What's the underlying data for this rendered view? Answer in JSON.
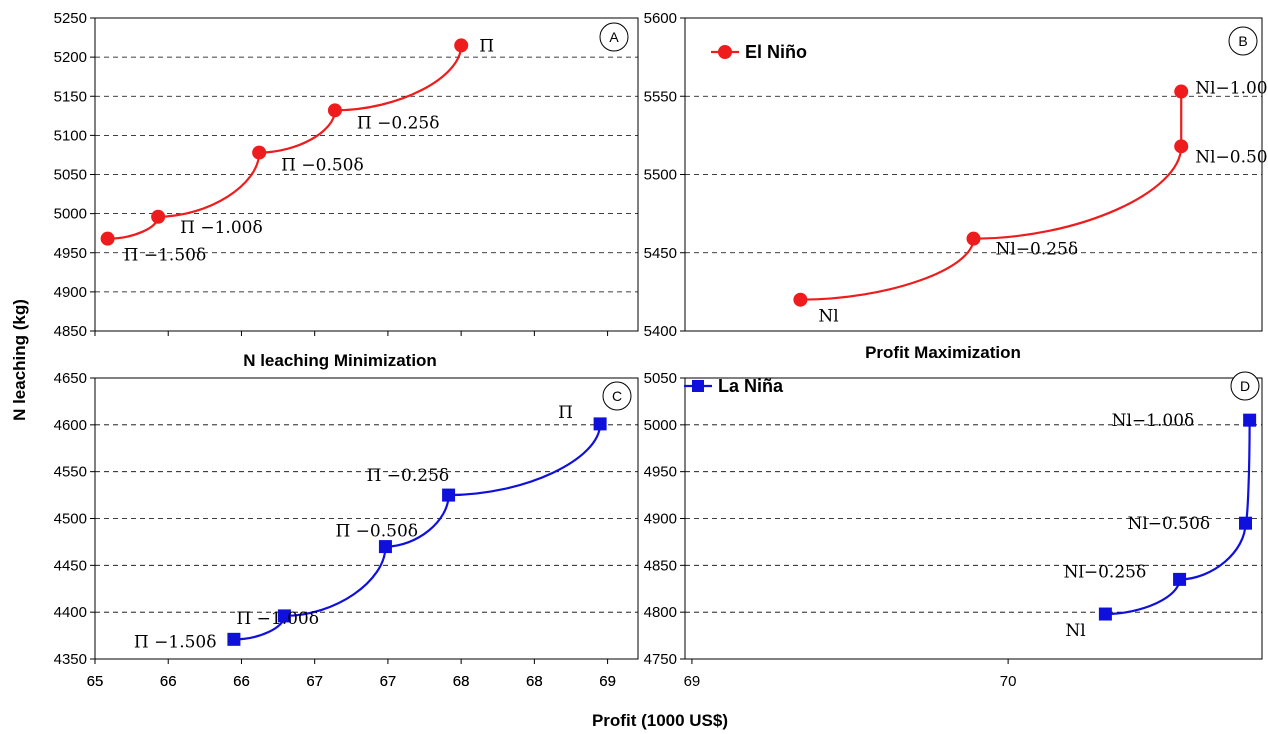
{
  "figure": {
    "y_axis_label": "N leaching (kg)",
    "x_axis_label": "Profit (1000 US$)"
  },
  "chart_data": [
    {
      "panel": "A",
      "type": "line",
      "title": "N leaching Minimization",
      "xlabel": "Profit (1000 US$)",
      "ylabel": "N leaching (kg)",
      "xlim": [
        65,
        69.3
      ],
      "ylim": [
        4850,
        5250
      ],
      "xticks": [
        "65",
        "66",
        "66",
        "67",
        "67",
        "68",
        "68",
        "69"
      ],
      "yticks": [
        4850,
        4900,
        4950,
        5000,
        5050,
        5100,
        5150,
        5200,
        5250
      ],
      "grid": "horizontal dashed",
      "series": [
        {
          "color": "#ee1c1c",
          "marker": "circle",
          "x": [
            65.1,
            65.5,
            66.3,
            66.9,
            67.9
          ],
          "y": [
            4968,
            4996,
            5078,
            5132,
            5215
          ]
        }
      ],
      "annotations": [
        {
          "text": "Π −1.50δ",
          "x": 65.1,
          "y": 4968
        },
        {
          "text": "Π −1.00δ",
          "x": 65.5,
          "y": 4996
        },
        {
          "text": "Π −0.50δ",
          "x": 66.3,
          "y": 5078
        },
        {
          "text": "Π −0.25δ",
          "x": 66.9,
          "y": 5132
        },
        {
          "text": "Π",
          "x": 67.9,
          "y": 5215
        }
      ]
    },
    {
      "panel": "B",
      "type": "line",
      "title": "Profit Maximization",
      "legend": "El Niño",
      "xlabel": "Profit (1000 US$)",
      "ylabel": "N leaching (kg)",
      "ylim": [
        5400,
        5600
      ],
      "yticks": [
        5400,
        5450,
        5500,
        5550,
        5600
      ],
      "grid": "horizontal dashed",
      "series": [
        {
          "name": "El Niño",
          "color": "#ee1c1c",
          "marker": "circle",
          "x": [
            69.05,
            69.2,
            69.38,
            69.38
          ],
          "y": [
            5420,
            5459,
            5518,
            5553
          ]
        }
      ],
      "annotations": [
        {
          "text": "Nl",
          "x": 69.05,
          "y": 5420
        },
        {
          "text": "Nl−0.25δ",
          "x": 69.2,
          "y": 5459
        },
        {
          "text": "Nl−0.50δ",
          "x": 69.38,
          "y": 5518
        },
        {
          "text": "Nl−1.00δ",
          "x": 69.38,
          "y": 5553
        }
      ]
    },
    {
      "panel": "C",
      "type": "line",
      "legend": "",
      "xlabel": "Profit (1000 US$)",
      "ylabel": "N leaching (kg)",
      "xlim": [
        65,
        69.3
      ],
      "ylim": [
        4350,
        4650
      ],
      "xticks": [
        "65",
        "66",
        "66",
        "67",
        "67",
        "68",
        "68",
        "69"
      ],
      "yticks": [
        4350,
        4400,
        4450,
        4500,
        4550,
        4600,
        4650
      ],
      "grid": "horizontal dashed",
      "series": [
        {
          "color": "#1010dd",
          "marker": "square",
          "x": [
            66.1,
            66.5,
            67.3,
            67.8,
            69.0
          ],
          "y": [
            4371,
            4396,
            4470,
            4525,
            4601
          ]
        }
      ],
      "annotations": [
        {
          "text": "Π −1.50δ",
          "x": 66.1,
          "y": 4371
        },
        {
          "text": "Π −1.00δ",
          "x": 66.5,
          "y": 4396
        },
        {
          "text": "Π −0.50δ",
          "x": 67.3,
          "y": 4470
        },
        {
          "text": "Π −0.25δ",
          "x": 67.8,
          "y": 4525
        },
        {
          "text": "Π",
          "x": 69.0,
          "y": 4601
        }
      ]
    },
    {
      "panel": "D",
      "type": "line",
      "legend": "La Niña",
      "xlabel": "Profit (1000 US$)",
      "ylabel": "N leaching (kg)",
      "xlim": [
        69,
        70.4
      ],
      "ylim": [
        4750,
        5050
      ],
      "xticks": [
        "69",
        "70"
      ],
      "yticks": [
        4750,
        4800,
        4850,
        4900,
        4950,
        5000,
        5050
      ],
      "grid": "horizontal dashed",
      "series": [
        {
          "name": "La Niña",
          "color": "#1010dd",
          "marker": "square",
          "x": [
            70.02,
            70.2,
            70.36,
            70.37
          ],
          "y": [
            4798,
            4835,
            4895,
            5005
          ]
        }
      ],
      "annotations": [
        {
          "text": "Nl",
          "x": 70.02,
          "y": 4798
        },
        {
          "text": "Nl−0.25δ",
          "x": 70.2,
          "y": 4835
        },
        {
          "text": "Nl−0.50δ",
          "x": 70.36,
          "y": 4895
        },
        {
          "text": "Nl−1.00δ",
          "x": 70.37,
          "y": 5005
        }
      ]
    }
  ]
}
